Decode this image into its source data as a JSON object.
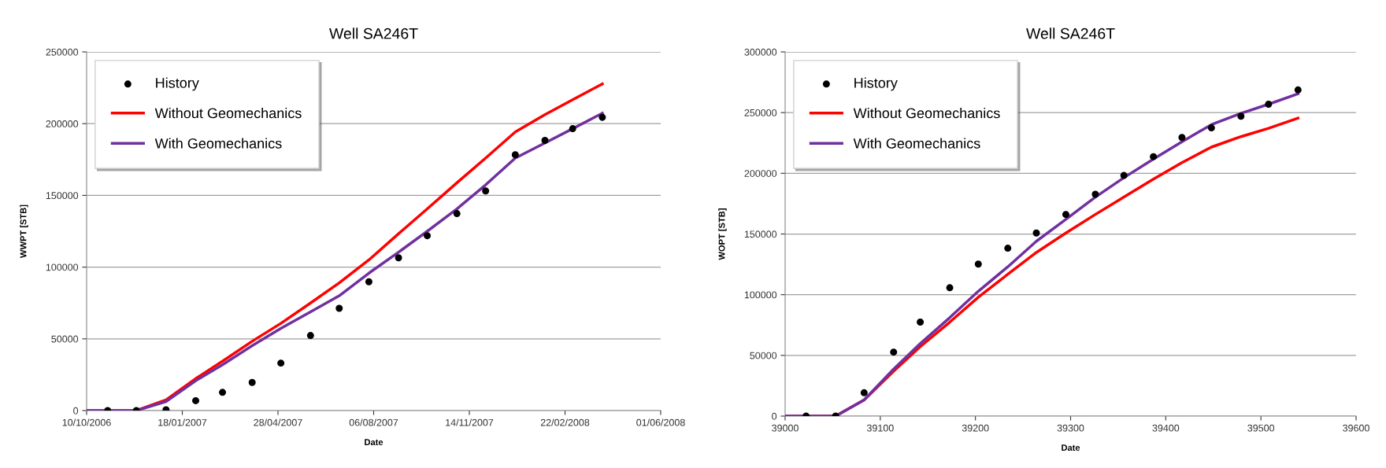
{
  "chart_data": [
    {
      "type": "line",
      "title": "Well SA246T",
      "xlabel": "Date",
      "ylabel": "WWPT [STB]",
      "xlim": [
        "2006-10-10",
        "2008-06-01"
      ],
      "xticks": [
        {
          "value": "2006-10-10",
          "label": "10/10/2006"
        },
        {
          "value": "2007-01-18",
          "label": "18/01/2007"
        },
        {
          "value": "2007-04-28",
          "label": "28/04/2007"
        },
        {
          "value": "2007-08-06",
          "label": "06/08/2007"
        },
        {
          "value": "2007-11-14",
          "label": "14/11/2007"
        },
        {
          "value": "2008-02-22",
          "label": "22/02/2008"
        },
        {
          "value": "2008-06-01",
          "label": "01/06/2008"
        }
      ],
      "ylim": [
        0,
        250000
      ],
      "yticks": [
        0,
        50000,
        100000,
        150000,
        200000,
        250000
      ],
      "grid": "y",
      "legend": "top left",
      "series": [
        {
          "name": "History",
          "type": "scatter",
          "marker": "circle",
          "color": "#000000",
          "x": [
            "2006-11-01",
            "2006-12-01",
            "2007-01-01",
            "2007-02-01",
            "2007-03-01",
            "2007-04-01",
            "2007-05-01",
            "2007-06-01",
            "2007-07-01",
            "2007-08-01",
            "2007-09-01",
            "2007-10-01",
            "2007-11-01",
            "2007-12-01",
            "2008-01-01",
            "2008-02-01",
            "2008-03-01",
            "2008-04-01"
          ],
          "values": [
            0,
            0,
            600,
            6900,
            12700,
            19600,
            33100,
            52300,
            71300,
            89800,
            106500,
            121900,
            137300,
            153100,
            178300,
            188300,
            196500,
            204400
          ]
        },
        {
          "name": "Without Geomechanics",
          "color": "#ff0000",
          "x": [
            "2006-10-10",
            "2006-12-01",
            "2007-01-01",
            "2007-02-01",
            "2007-03-01",
            "2007-04-01",
            "2007-05-01",
            "2007-06-01",
            "2007-07-01",
            "2007-08-01",
            "2007-09-01",
            "2007-10-01",
            "2007-11-01",
            "2007-12-01",
            "2008-01-01",
            "2008-02-01",
            "2008-03-01",
            "2008-04-01"
          ],
          "values": [
            0,
            0,
            7500,
            22300,
            34400,
            48300,
            60800,
            75000,
            89000,
            105000,
            123300,
            140600,
            158800,
            176000,
            194200,
            206300,
            216700,
            227700
          ]
        },
        {
          "name": "With Geomechanics",
          "color": "#7030a0",
          "x": [
            "2006-10-10",
            "2006-12-01",
            "2007-01-01",
            "2007-02-01",
            "2007-03-01",
            "2007-04-01",
            "2007-05-01",
            "2007-06-01",
            "2007-07-01",
            "2007-08-01",
            "2007-09-01",
            "2007-10-01",
            "2007-11-01",
            "2007-12-01",
            "2008-01-01",
            "2008-02-01",
            "2008-03-01",
            "2008-04-01"
          ],
          "values": [
            0,
            0,
            6300,
            20800,
            31900,
            45200,
            57300,
            68800,
            80000,
            95800,
            110400,
            125000,
            140600,
            157300,
            176000,
            186500,
            196500,
            207300
          ]
        }
      ]
    },
    {
      "type": "line",
      "title": "Well SA246T",
      "xlabel": "Date",
      "ylabel": "WOPT [STB]",
      "xlim": [
        39000,
        39600
      ],
      "xticks": [
        39000,
        39100,
        39200,
        39300,
        39400,
        39500,
        39600
      ],
      "ylim": [
        0,
        300000
      ],
      "yticks": [
        0,
        50000,
        100000,
        150000,
        200000,
        250000,
        300000
      ],
      "grid": "y",
      "legend": "top left",
      "series": [
        {
          "name": "History",
          "type": "scatter",
          "marker": "circle",
          "color": "#000000",
          "x": [
            39022,
            39053,
            39083,
            39114,
            39142,
            39173,
            39203,
            39234,
            39264,
            39295,
            39326,
            39356,
            39387,
            39417,
            39448,
            39479,
            39508,
            39539
          ],
          "values": [
            0,
            0,
            19200,
            52700,
            77400,
            105700,
            125200,
            138300,
            150800,
            166100,
            182700,
            198200,
            213700,
            229500,
            237400,
            247000,
            256900,
            268700
          ]
        },
        {
          "name": "Without Geomechanics",
          "color": "#ff0000",
          "x": [
            39000,
            39053,
            39083,
            39114,
            39142,
            39173,
            39203,
            39234,
            39264,
            39295,
            39326,
            39356,
            39387,
            39417,
            39448,
            39479,
            39508,
            39539
          ],
          "values": [
            0,
            0,
            13300,
            37000,
            57200,
            77400,
            97900,
            116800,
            134800,
            150800,
            166100,
            180400,
            195200,
            208800,
            221600,
            230200,
            237100,
            245500
          ]
        },
        {
          "name": "With Geomechanics",
          "color": "#7030a0",
          "x": [
            39000,
            39053,
            39083,
            39114,
            39142,
            39173,
            39203,
            39234,
            39264,
            39295,
            39326,
            39356,
            39387,
            39417,
            39448,
            39479,
            39508,
            39539
          ],
          "values": [
            0,
            0,
            13300,
            38700,
            59700,
            81100,
            102800,
            123000,
            144000,
            162000,
            180400,
            196400,
            211700,
            226000,
            240100,
            249400,
            256900,
            265500
          ]
        }
      ]
    }
  ]
}
